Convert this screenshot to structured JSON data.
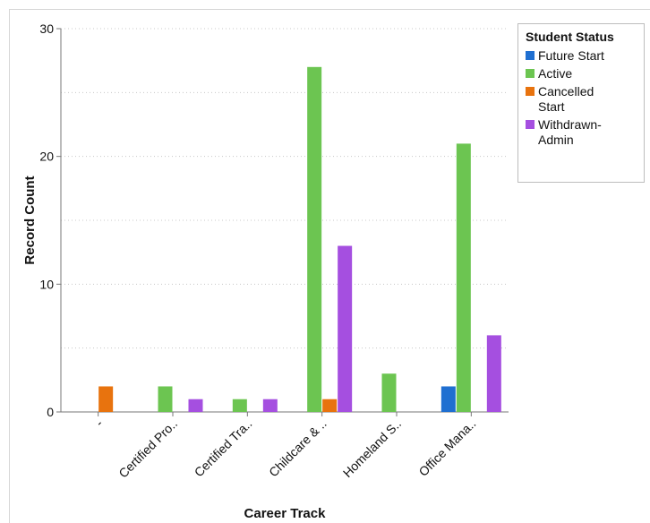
{
  "chart_data": {
    "type": "bar",
    "xlabel": "Career Track",
    "ylabel": "Record Count",
    "ylim": [
      0,
      30
    ],
    "yticks": [
      0,
      10,
      20,
      30
    ],
    "categories": [
      "-",
      "Certified Pro..",
      "Certified Tra..",
      "Childcare & ..",
      "Homeland S..",
      "Office Mana.."
    ],
    "series": [
      {
        "name": "Future Start",
        "color": "#1f6fd1",
        "values": [
          0,
          0,
          0,
          0,
          0,
          2
        ]
      },
      {
        "name": "Active",
        "color": "#6cc551",
        "values": [
          0,
          2,
          1,
          27,
          3,
          21
        ]
      },
      {
        "name": "Cancelled Start",
        "color": "#e8730e",
        "values": [
          2,
          0,
          0,
          1,
          0,
          0
        ]
      },
      {
        "name": "Withdrawn-Admin",
        "color": "#a54fe0",
        "values": [
          0,
          1,
          1,
          13,
          0,
          6
        ]
      }
    ],
    "legend": {
      "title": "Student Status",
      "position": "top-right"
    },
    "grid": true
  }
}
